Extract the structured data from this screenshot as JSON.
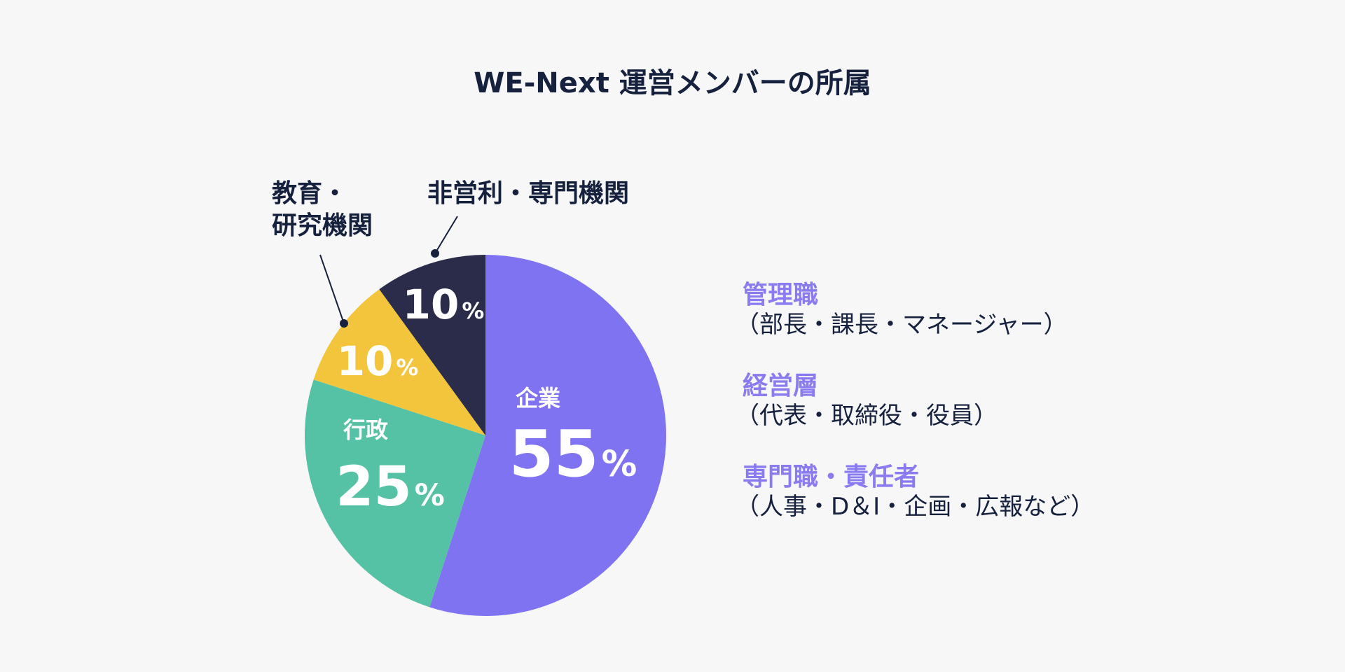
{
  "chart_data": {
    "type": "pie",
    "title": "WE-Next 運営メンバーの所属",
    "categories": [
      "企業",
      "行政",
      "教育・\n研究機関",
      "非営利・専門機関"
    ],
    "values": [
      55,
      25,
      10,
      10
    ],
    "value_labels": [
      "55%",
      "25%",
      "10%",
      "10%"
    ],
    "colors": [
      "#7f73f2",
      "#55c2a5",
      "#f2c53d",
      "#2a2c4a"
    ],
    "annotations": [
      {
        "title": "管理職",
        "detail": "（部長・課長・マネージャー）"
      },
      {
        "title": "経営層",
        "detail": "（代表・取締役・役員）"
      },
      {
        "title": "専門職・責任者",
        "detail": "（人事・D＆I・企画・広報など）"
      }
    ]
  }
}
